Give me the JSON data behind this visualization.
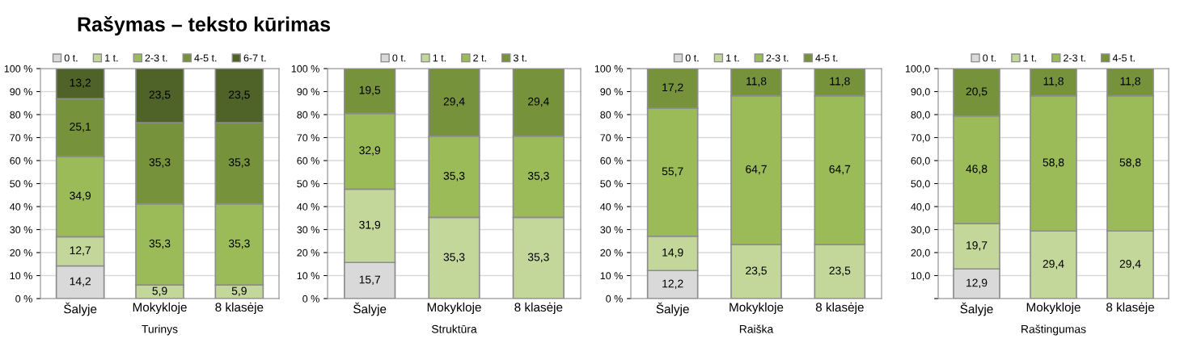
{
  "chart_data": [
    {
      "type": "bar",
      "stacked": true,
      "title": "Rašymas – teksto kūrimas",
      "xlabel": "Turinys",
      "categories": [
        "Šalyje",
        "Mokykloje",
        "8 klasėje"
      ],
      "legend": "top",
      "grid": "y",
      "ylim": [
        0,
        100
      ],
      "yticks": [
        {
          "value": 0,
          "label": "0 %"
        },
        {
          "value": 10,
          "label": "10 %"
        },
        {
          "value": 20,
          "label": "20 %"
        },
        {
          "value": 30,
          "label": "30 %"
        },
        {
          "value": 40,
          "label": "40 %"
        },
        {
          "value": 50,
          "label": "50 %"
        },
        {
          "value": 60,
          "label": "60 %"
        },
        {
          "value": 70,
          "label": "70 %"
        },
        {
          "value": 80,
          "label": "80 %"
        },
        {
          "value": 90,
          "label": "90 %"
        },
        {
          "value": 100,
          "label": "100 %"
        }
      ],
      "series": [
        {
          "name": "0 t.",
          "color": "#d9d9d9",
          "values": [
            14.2,
            0,
            0
          ],
          "value_labels": [
            "14,2",
            null,
            null
          ]
        },
        {
          "name": "1 t.",
          "color": "#c4d79b",
          "values": [
            12.7,
            5.9,
            5.9
          ],
          "value_labels": [
            "12,7",
            "5,9",
            "5,9"
          ]
        },
        {
          "name": "2-3 t.",
          "color": "#9bbb59",
          "values": [
            34.9,
            35.3,
            35.3
          ],
          "value_labels": [
            "34,9",
            "35,3",
            "35,3"
          ]
        },
        {
          "name": "4-5 t.",
          "color": "#76933c",
          "values": [
            25.1,
            35.3,
            35.3
          ],
          "value_labels": [
            "25,1",
            "35,3",
            "35,3"
          ]
        },
        {
          "name": "6-7 t.",
          "color": "#4f6228",
          "values": [
            13.2,
            23.5,
            23.5
          ],
          "value_labels": [
            "13,2",
            "23,5",
            "23,5"
          ]
        }
      ]
    },
    {
      "type": "bar",
      "stacked": true,
      "xlabel": "Struktūra",
      "categories": [
        "Šalyje",
        "Mokykloje",
        "8 klasėje"
      ],
      "legend": "top",
      "grid": "y",
      "ylim": [
        0,
        100
      ],
      "yticks": [
        {
          "value": 0,
          "label": "0 %"
        },
        {
          "value": 10,
          "label": "10 %"
        },
        {
          "value": 20,
          "label": "20 %"
        },
        {
          "value": 30,
          "label": "30 %"
        },
        {
          "value": 40,
          "label": "40 %"
        },
        {
          "value": 50,
          "label": "50 %"
        },
        {
          "value": 60,
          "label": "60 %"
        },
        {
          "value": 70,
          "label": "70 %"
        },
        {
          "value": 80,
          "label": "80 %"
        },
        {
          "value": 90,
          "label": "90 %"
        },
        {
          "value": 100,
          "label": "100 %"
        }
      ],
      "series": [
        {
          "name": "0 t.",
          "color": "#d9d9d9",
          "values": [
            15.7,
            0,
            0
          ],
          "value_labels": [
            "15,7",
            null,
            null
          ]
        },
        {
          "name": "1 t.",
          "color": "#c4d79b",
          "values": [
            31.9,
            35.3,
            35.3
          ],
          "value_labels": [
            "31,9",
            "35,3",
            "35,3"
          ]
        },
        {
          "name": "2 t.",
          "color": "#9bbb59",
          "values": [
            32.9,
            35.3,
            35.3
          ],
          "value_labels": [
            "32,9",
            "35,3",
            "35,3"
          ]
        },
        {
          "name": "3 t.",
          "color": "#76933c",
          "values": [
            19.5,
            29.4,
            29.4
          ],
          "value_labels": [
            "19,5",
            "29,4",
            "29,4"
          ]
        }
      ]
    },
    {
      "type": "bar",
      "stacked": true,
      "xlabel": "Raiška",
      "categories": [
        "Šalyje",
        "Mokykloje",
        "8 klasėje"
      ],
      "legend": "top",
      "grid": "y",
      "ylim": [
        0,
        100
      ],
      "yticks": [
        {
          "value": 0,
          "label": "0 %"
        },
        {
          "value": 10,
          "label": "10 %"
        },
        {
          "value": 20,
          "label": "20 %"
        },
        {
          "value": 30,
          "label": "30 %"
        },
        {
          "value": 40,
          "label": "40 %"
        },
        {
          "value": 50,
          "label": "50 %"
        },
        {
          "value": 60,
          "label": "60 %"
        },
        {
          "value": 70,
          "label": "70 %"
        },
        {
          "value": 80,
          "label": "80 %"
        },
        {
          "value": 90,
          "label": "90 %"
        },
        {
          "value": 100,
          "label": "100 %"
        }
      ],
      "series": [
        {
          "name": "0 t.",
          "color": "#d9d9d9",
          "values": [
            12.2,
            0,
            0
          ],
          "value_labels": [
            "12,2",
            null,
            null
          ]
        },
        {
          "name": "1 t.",
          "color": "#c4d79b",
          "values": [
            14.9,
            23.5,
            23.5
          ],
          "value_labels": [
            "14,9",
            "23,5",
            "23,5"
          ]
        },
        {
          "name": "2-3 t.",
          "color": "#9bbb59",
          "values": [
            55.7,
            64.7,
            64.7
          ],
          "value_labels": [
            "55,7",
            "64,7",
            "64,7"
          ]
        },
        {
          "name": "4-5 t.",
          "color": "#76933c",
          "values": [
            17.2,
            11.8,
            11.8
          ],
          "value_labels": [
            "17,2",
            "11,8",
            "11,8"
          ]
        }
      ]
    },
    {
      "type": "bar",
      "stacked": true,
      "xlabel": "Raštingumas",
      "categories": [
        "Šalyje",
        "Mokykloje",
        "8 klasėje"
      ],
      "legend": "top",
      "grid": "y",
      "ylim": [
        0,
        100
      ],
      "yticks": [
        {
          "value": 0,
          "label": null
        },
        {
          "value": 10,
          "label": "10,0"
        },
        {
          "value": 20,
          "label": "20,0"
        },
        {
          "value": 30,
          "label": "30,0"
        },
        {
          "value": 40,
          "label": "40,0"
        },
        {
          "value": 50,
          "label": "50,0"
        },
        {
          "value": 60,
          "label": "60,0"
        },
        {
          "value": 70,
          "label": "70,0"
        },
        {
          "value": 80,
          "label": "80,0"
        },
        {
          "value": 90,
          "label": "90,0"
        },
        {
          "value": 100,
          "label": "100,0"
        }
      ],
      "series": [
        {
          "name": "0 t.",
          "color": "#d9d9d9",
          "values": [
            12.9,
            0,
            0
          ],
          "value_labels": [
            "12,9",
            null,
            null
          ]
        },
        {
          "name": "1 t.",
          "color": "#c4d79b",
          "values": [
            19.7,
            29.4,
            29.4
          ],
          "value_labels": [
            "19,7",
            "29,4",
            "29,4"
          ]
        },
        {
          "name": "2-3 t.",
          "color": "#9bbb59",
          "values": [
            46.8,
            58.8,
            58.8
          ],
          "value_labels": [
            "46,8",
            "58,8",
            "58,8"
          ]
        },
        {
          "name": "4-5 t.",
          "color": "#76933c",
          "values": [
            20.5,
            11.8,
            11.8
          ],
          "value_labels": [
            "20,5",
            "11,8",
            "11,8"
          ]
        }
      ]
    }
  ]
}
